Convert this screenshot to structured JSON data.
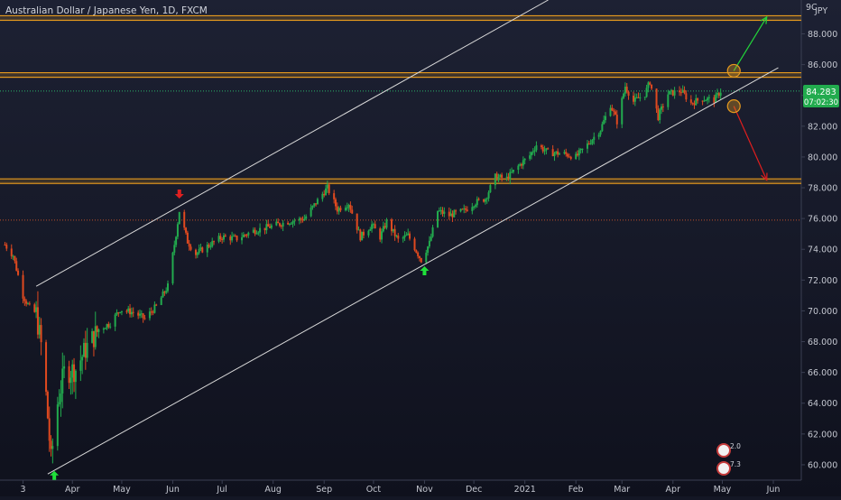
{
  "chart_data": {
    "type": "candlestick",
    "title": "Australian Dollar / Japanese Yen, 1D, FXCM",
    "currency_label": "JPY",
    "currency_prefix": "9C",
    "ylim": [
      59,
      90.2
    ],
    "y_ticks": [
      "60.000",
      "62.000",
      "64.000",
      "66.000",
      "68.000",
      "70.000",
      "72.000",
      "74.000",
      "76.000",
      "78.000",
      "80.000",
      "82.000",
      "84.000",
      "86.000",
      "88.000"
    ],
    "x_ticks": [
      {
        "label": "3",
        "date": "2020-03-02"
      },
      {
        "label": "Apr",
        "date": "2020-04-01"
      },
      {
        "label": "May",
        "date": "2020-05-01"
      },
      {
        "label": "Jun",
        "date": "2020-06-01"
      },
      {
        "label": "Jul",
        "date": "2020-07-01"
      },
      {
        "label": "Aug",
        "date": "2020-08-01"
      },
      {
        "label": "Sep",
        "date": "2020-09-01"
      },
      {
        "label": "Oct",
        "date": "2020-10-01"
      },
      {
        "label": "Nov",
        "date": "2020-11-01"
      },
      {
        "label": "Dec",
        "date": "2020-12-01"
      },
      {
        "label": "2021",
        "date": "2021-01-01"
      },
      {
        "label": "Feb",
        "date": "2021-02-01"
      },
      {
        "label": "Mar",
        "date": "2021-03-01"
      },
      {
        "label": "Apr",
        "date": "2021-04-01"
      },
      {
        "label": "May",
        "date": "2021-05-01"
      },
      {
        "label": "Jun",
        "date": "2021-06-01"
      }
    ],
    "current_price": "84.283",
    "countdown": "07:02:30",
    "price_line": 84.283,
    "secondary_line": 75.9,
    "close_path": [
      [
        "2020-02-20",
        74.3
      ],
      [
        "2020-02-25",
        73.6
      ],
      [
        "2020-03-02",
        71.0
      ],
      [
        "2020-03-06",
        70.2
      ],
      [
        "2020-03-10",
        69.8
      ],
      [
        "2020-03-13",
        67.8
      ],
      [
        "2020-03-16",
        64.5
      ],
      [
        "2020-03-19",
        60.3
      ],
      [
        "2020-03-23",
        64.0
      ],
      [
        "2020-03-27",
        66.0
      ],
      [
        "2020-04-03",
        66.2
      ],
      [
        "2020-04-09",
        67.5
      ],
      [
        "2020-04-17",
        68.8
      ],
      [
        "2020-04-24",
        69.2
      ],
      [
        "2020-04-30",
        70.1
      ],
      [
        "2020-05-08",
        69.9
      ],
      [
        "2020-05-15",
        69.5
      ],
      [
        "2020-05-22",
        70.3
      ],
      [
        "2020-05-29",
        71.6
      ],
      [
        "2020-06-03",
        75.0
      ],
      [
        "2020-06-05",
        76.5
      ],
      [
        "2020-06-10",
        74.5
      ],
      [
        "2020-06-15",
        73.7
      ],
      [
        "2020-06-22",
        74.2
      ],
      [
        "2020-07-01",
        74.8
      ],
      [
        "2020-07-10",
        74.7
      ],
      [
        "2020-07-20",
        75.2
      ],
      [
        "2020-07-31",
        75.5
      ],
      [
        "2020-08-10",
        75.8
      ],
      [
        "2020-08-20",
        76.0
      ],
      [
        "2020-08-31",
        77.6
      ],
      [
        "2020-09-03",
        78.0
      ],
      [
        "2020-09-09",
        76.6
      ],
      [
        "2020-09-16",
        77.0
      ],
      [
        "2020-09-23",
        74.8
      ],
      [
        "2020-09-30",
        75.6
      ],
      [
        "2020-10-05",
        74.8
      ],
      [
        "2020-10-09",
        75.8
      ],
      [
        "2020-10-16",
        74.6
      ],
      [
        "2020-10-22",
        74.9
      ],
      [
        "2020-10-30",
        73.3
      ],
      [
        "2020-11-04",
        74.4
      ],
      [
        "2020-11-09",
        76.5
      ],
      [
        "2020-11-16",
        76.2
      ],
      [
        "2020-11-25",
        76.5
      ],
      [
        "2020-12-01",
        77.0
      ],
      [
        "2020-12-08",
        77.3
      ],
      [
        "2020-12-14",
        78.7
      ],
      [
        "2020-12-21",
        78.6
      ],
      [
        "2020-12-28",
        79.4
      ],
      [
        "2021-01-04",
        80.1
      ],
      [
        "2021-01-08",
        80.8
      ],
      [
        "2021-01-15",
        80.3
      ],
      [
        "2021-01-25",
        80.2
      ],
      [
        "2021-02-01",
        80.0
      ],
      [
        "2021-02-08",
        80.8
      ],
      [
        "2021-02-16",
        81.8
      ],
      [
        "2021-02-22",
        83.4
      ],
      [
        "2021-02-26",
        82.3
      ],
      [
        "2021-03-03",
        84.6
      ],
      [
        "2021-03-08",
        83.6
      ],
      [
        "2021-03-15",
        84.1
      ],
      [
        "2021-03-18",
        84.9
      ],
      [
        "2021-03-23",
        82.6
      ],
      [
        "2021-03-29",
        84.1
      ],
      [
        "2021-04-06",
        84.3
      ],
      [
        "2021-04-12",
        83.5
      ],
      [
        "2021-04-19",
        83.8
      ],
      [
        "2021-04-26",
        83.7
      ],
      [
        "2021-04-30",
        84.283
      ]
    ],
    "horizontal_levels": [
      89.0,
      85.3,
      78.4
    ],
    "channel_lower": [
      [
        "2020-03-17",
        59.4
      ],
      [
        "2021-06-04",
        85.8
      ]
    ],
    "channel_upper": [
      [
        "2020-03-10",
        71.6
      ],
      [
        "2020-06-05",
        76.8
      ]
    ],
    "projections": {
      "up": {
        "from": [
          "2021-05-08",
          85.6
        ],
        "to": [
          "2021-05-28",
          89.1
        ],
        "color": "#22d63a"
      },
      "down": {
        "from": [
          "2021-05-08",
          83.3
        ],
        "to": [
          "2021-05-28",
          78.5
        ],
        "color": "#e01e1e"
      },
      "circle_upper": [
        "2021-05-08",
        85.6
      ],
      "circle_lower": [
        "2021-05-08",
        83.3
      ]
    },
    "markers": [
      {
        "date": "2020-03-21",
        "value": 59.6,
        "dir": "up",
        "color": "#1fe03a"
      },
      {
        "date": "2020-06-05",
        "value": 77.3,
        "dir": "down",
        "color": "#e02020"
      },
      {
        "date": "2020-11-01",
        "value": 72.9,
        "dir": "up",
        "color": "#1fe03a"
      }
    ],
    "badges": [
      {
        "text": "2.0"
      },
      {
        "text": "7.3"
      }
    ],
    "colors": {
      "up": "#22ab4e",
      "down": "#e0491f",
      "level": "#e69a1e",
      "channel": "#d9d9d9",
      "price_label": "#22ab4e"
    }
  }
}
